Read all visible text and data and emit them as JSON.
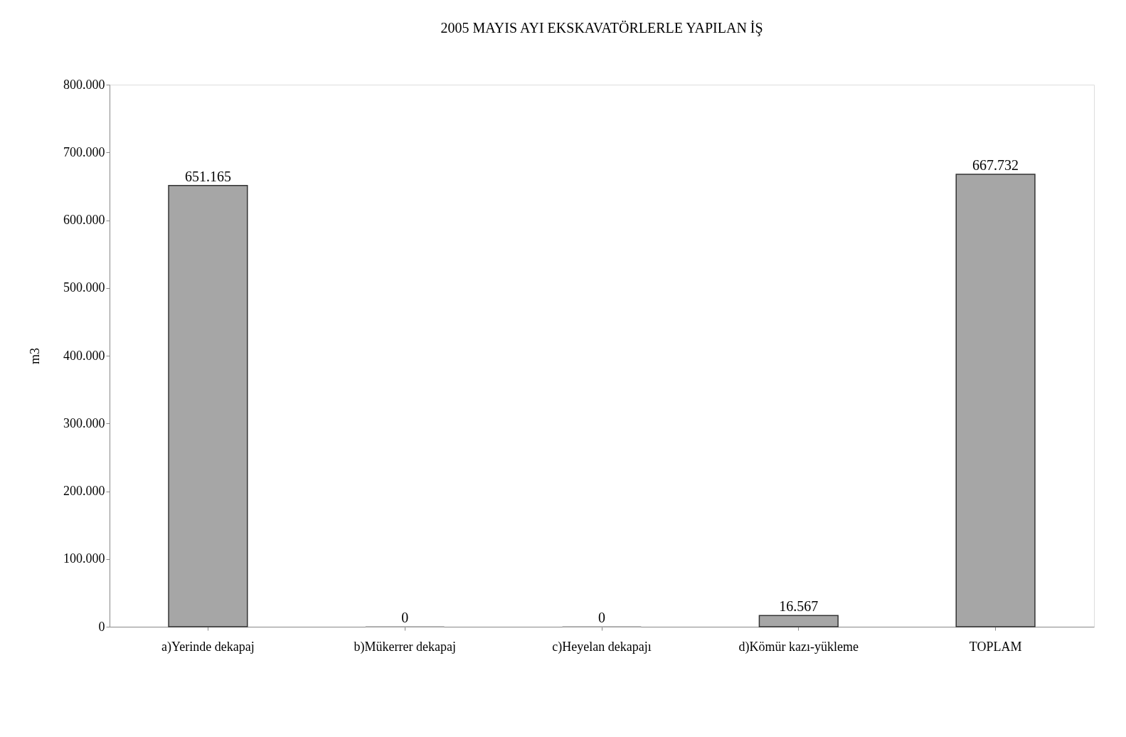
{
  "chart_data": {
    "type": "bar",
    "title": "2005 MAYIS AYI EKSKAVATÖRLERLE YAPILAN İŞ",
    "ylabel": "m3",
    "categories": [
      "a)Yerinde dekapaj",
      "b)Mükerrer dekapaj",
      "c)Heyelan dekapajı",
      "d)Kömür kazı-yükleme",
      "TOPLAM"
    ],
    "values": [
      651165,
      0,
      0,
      16567,
      667732
    ],
    "value_labels": [
      "651.165",
      "0",
      "0",
      "16.567",
      "667.732"
    ],
    "color": "#a6a6a6",
    "ylim": [
      0,
      800000
    ],
    "yticks": [
      {
        "value": 0,
        "label": "0"
      },
      {
        "value": 100000,
        "label": "100.000"
      },
      {
        "value": 200000,
        "label": "200.000"
      },
      {
        "value": 300000,
        "label": "300.000"
      },
      {
        "value": 400000,
        "label": "400.000"
      },
      {
        "value": 500000,
        "label": "500.000"
      },
      {
        "value": 600000,
        "label": "600.000"
      },
      {
        "value": 700000,
        "label": "700.000"
      },
      {
        "value": 800000,
        "label": "800.000"
      }
    ],
    "grid": false
  }
}
